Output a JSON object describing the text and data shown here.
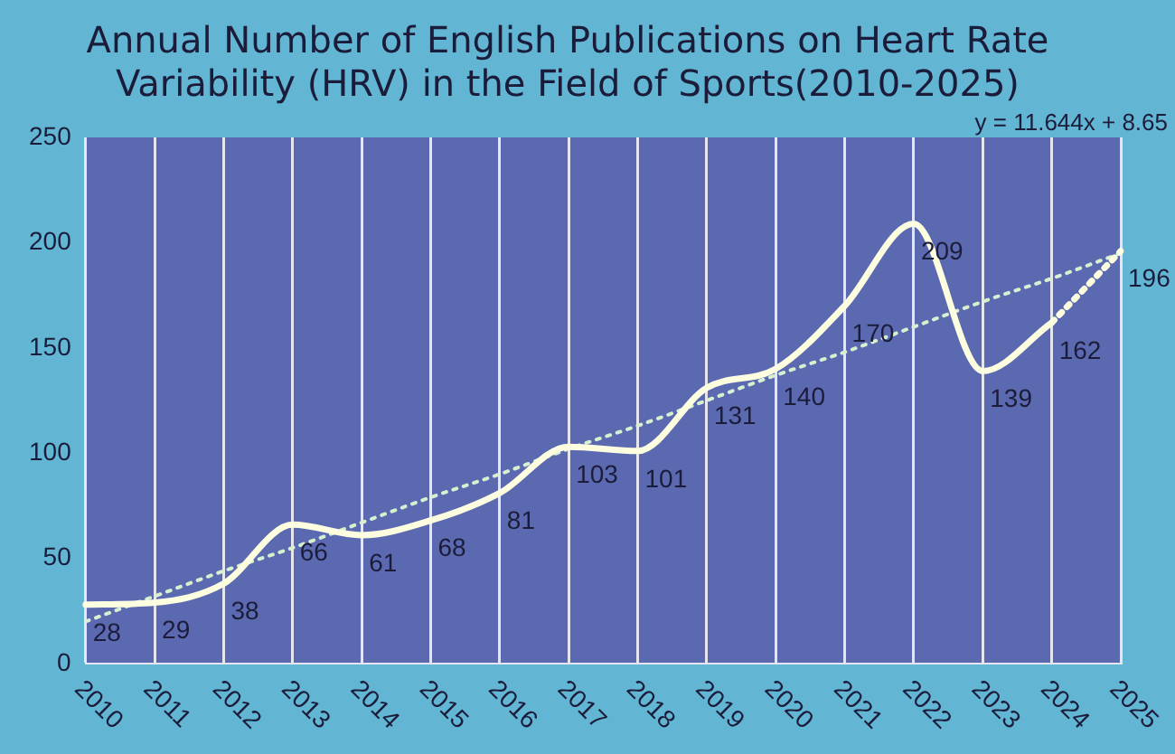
{
  "chart_data": {
    "type": "line",
    "title": [
      "Annual Number of English Publications on Heart Rate",
      "Variability (HRV) in the Field of Sports(2010-2025)"
    ],
    "categories": [
      "2010",
      "2011",
      "2012",
      "2013",
      "2014",
      "2015",
      "2016",
      "2017",
      "2018",
      "2019",
      "2020",
      "2021",
      "2022",
      "2023",
      "2024",
      "2025"
    ],
    "series": [
      {
        "color": "#fdfde0",
        "line_style": "solid",
        "values": [
          28,
          29,
          38,
          66,
          61,
          68,
          81,
          103,
          101,
          131,
          140,
          170,
          209,
          139,
          162,
          null
        ]
      },
      {
        "color": "#fdfde0",
        "line_style": "dotted",
        "values": [
          null,
          null,
          null,
          null,
          null,
          null,
          null,
          null,
          null,
          null,
          null,
          null,
          null,
          null,
          162,
          196
        ],
        "value_labels": [
          null,
          null,
          null,
          null,
          null,
          null,
          null,
          null,
          null,
          null,
          null,
          null,
          null,
          null,
          null,
          "196"
        ]
      },
      {
        "color": "#d8f0d0",
        "line_style": "dotted",
        "values": [
          20,
          32,
          44,
          55,
          67,
          79,
          90,
          102,
          113,
          125,
          137,
          148,
          160,
          172,
          183,
          195
        ],
        "value_labels": [
          null,
          null,
          null,
          null,
          null,
          null,
          null,
          null,
          null,
          null,
          null,
          null,
          null,
          null,
          null,
          null
        ]
      }
    ],
    "data_labels": true,
    "annotations": [
      "y = 11.644x + 8.65"
    ],
    "ylim": [
      0,
      250
    ],
    "yticks": [
      0,
      50,
      100,
      150,
      200,
      250
    ],
    "grid": "x",
    "legend": false,
    "marker": "none"
  }
}
